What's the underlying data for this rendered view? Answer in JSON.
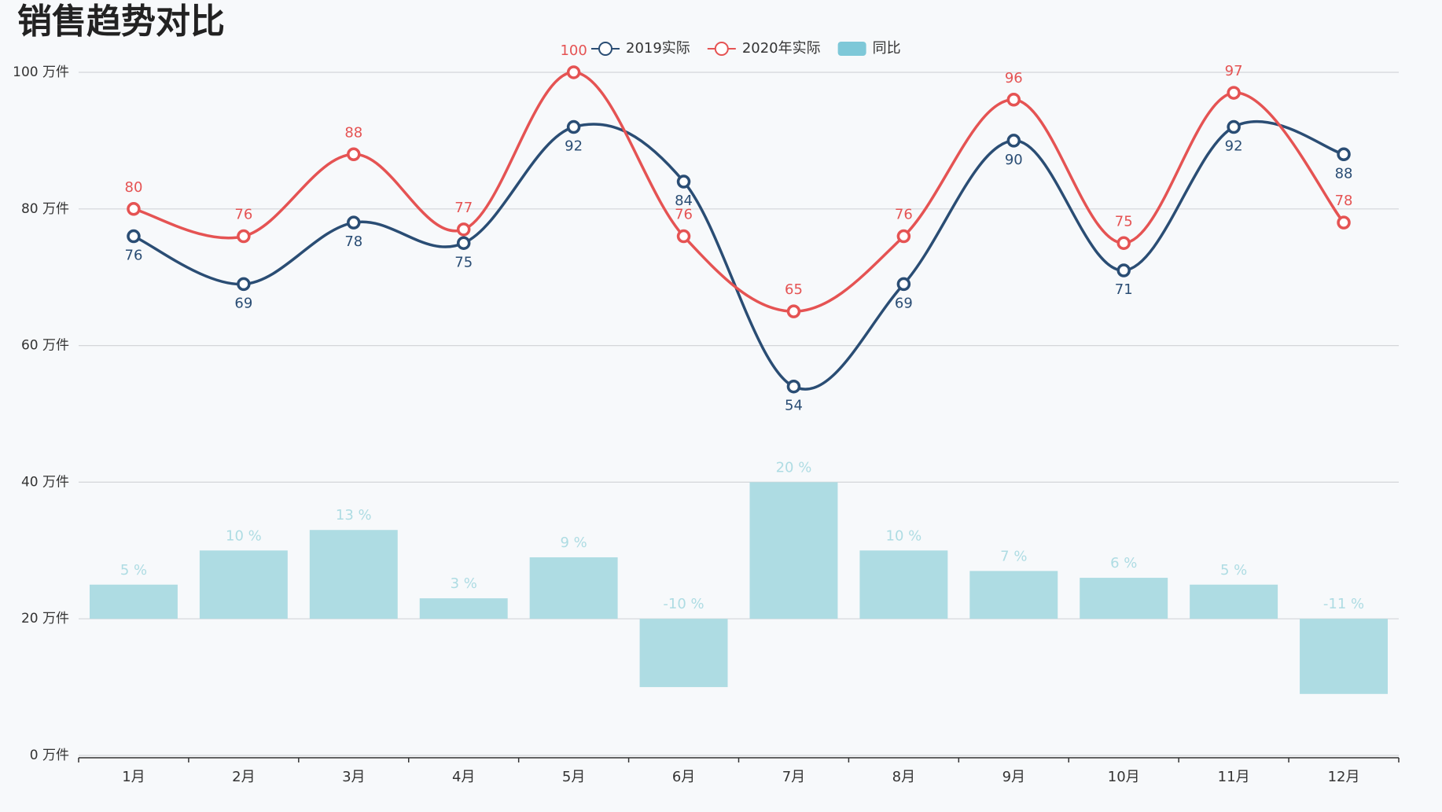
{
  "chart_data": {
    "type": "line-bar",
    "title": "销售趋势对比",
    "categories": [
      "1月",
      "2月",
      "3月",
      "4月",
      "5月",
      "6月",
      "7月",
      "8月",
      "9月",
      "10月",
      "11月",
      "12月"
    ],
    "ylim": [
      0,
      100
    ],
    "yticks": [
      {
        "value": 0,
        "label": "0 万件"
      },
      {
        "value": 20,
        "label": "20 万件"
      },
      {
        "value": 40,
        "label": "40 万件"
      },
      {
        "value": 60,
        "label": "60 万件"
      },
      {
        "value": 80,
        "label": "80 万件"
      },
      {
        "value": 100,
        "label": "100 万件"
      }
    ],
    "y2lim": [
      -20,
      80
    ],
    "grid": true,
    "legend": "top",
    "series": [
      {
        "name": "2019实际",
        "type": "line",
        "color": "#2a4d74",
        "label_position": "below",
        "values": [
          76,
          69,
          78,
          75,
          92,
          84,
          54,
          69,
          90,
          71,
          92,
          88
        ]
      },
      {
        "name": "2020年实际",
        "type": "line",
        "color": "#e55353",
        "label_position": "above",
        "values": [
          80,
          76,
          88,
          77,
          100,
          76,
          65,
          76,
          96,
          75,
          97,
          78
        ]
      },
      {
        "name": "同比",
        "type": "bar",
        "axis": "y2",
        "color": "#aedce3",
        "values": [
          5,
          10,
          13,
          3,
          9,
          -10,
          20,
          10,
          7,
          6,
          5,
          -11
        ],
        "value_labels": [
          "5 %",
          "10 %",
          "13 %",
          "3 %",
          "9 %",
          "-10 %",
          "20 %",
          "10 %",
          "7 %",
          "6 %",
          "5 %",
          "-11 %"
        ]
      }
    ]
  }
}
